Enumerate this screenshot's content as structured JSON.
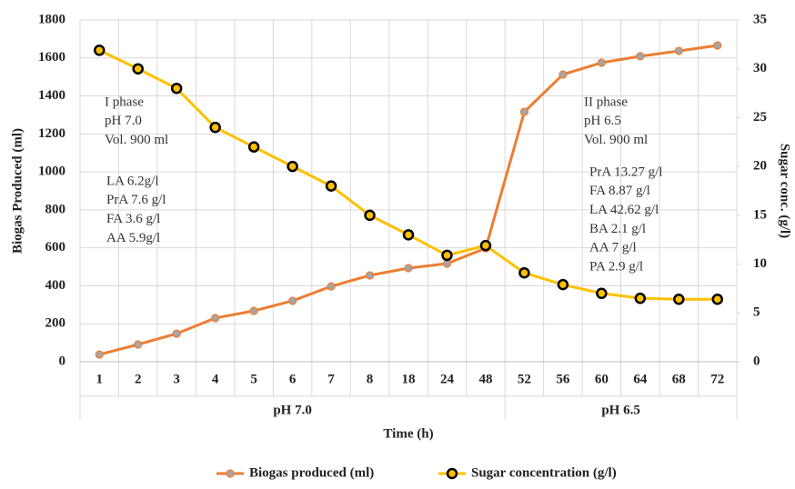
{
  "chart_data": {
    "type": "line",
    "x_label": "Time (h)",
    "y_label": "Biogas Produced (ml)",
    "y2_label": "Sugar conc. (g/l)",
    "categories": [
      "1",
      "2",
      "3",
      "4",
      "5",
      "6",
      "7",
      "8",
      "18",
      "24",
      "48",
      "52",
      "56",
      "60",
      "64",
      "68",
      "72"
    ],
    "group_labels": [
      "pH 7.0",
      "pH 6.5"
    ],
    "series": [
      {
        "name": "Biogas produced (ml)",
        "color": "#ed7d31",
        "marker_color": "#a5a5a5",
        "values": [
          38,
          91,
          148,
          230,
          268,
          321,
          397,
          455,
          493,
          517,
          598,
          1316,
          1513,
          1575,
          1609,
          1637,
          1666
        ]
      },
      {
        "name": "Sugar concentration (g/l)",
        "color": "#ffc000",
        "marker_color": "#000000",
        "axis": "y2",
        "values": [
          31.9,
          30,
          28,
          24,
          22,
          20,
          18,
          15,
          13,
          10.9,
          11.9,
          9.1,
          7.9,
          7,
          6.5,
          6.4,
          6.4
        ]
      }
    ],
    "ylim": [
      0,
      1800
    ],
    "yticks": [
      0,
      200,
      400,
      600,
      800,
      1000,
      1200,
      1400,
      1600,
      1800
    ],
    "y2lim": [
      0,
      35
    ],
    "y2ticks": [
      0,
      5,
      10,
      15,
      20,
      25,
      30,
      35
    ],
    "grid": true,
    "legend": "bottom",
    "annotations": [
      [
        "I phase",
        "pH 7.0",
        "Vol. 900 ml"
      ],
      [
        "LA 6.2g/l",
        "PrA 7.6 g/l",
        "FA 3.6 g/l",
        "AA 5.9g/l"
      ],
      [
        "II phase",
        "pH 6.5",
        "Vol. 900 ml"
      ],
      [
        "PrA 13.27 g/l",
        "FA 8.87 g/l",
        "LA 42.62 g/l",
        "BA 2.1 g/l",
        "AA 7 g/l",
        "PA 2.9 g/l"
      ]
    ]
  }
}
